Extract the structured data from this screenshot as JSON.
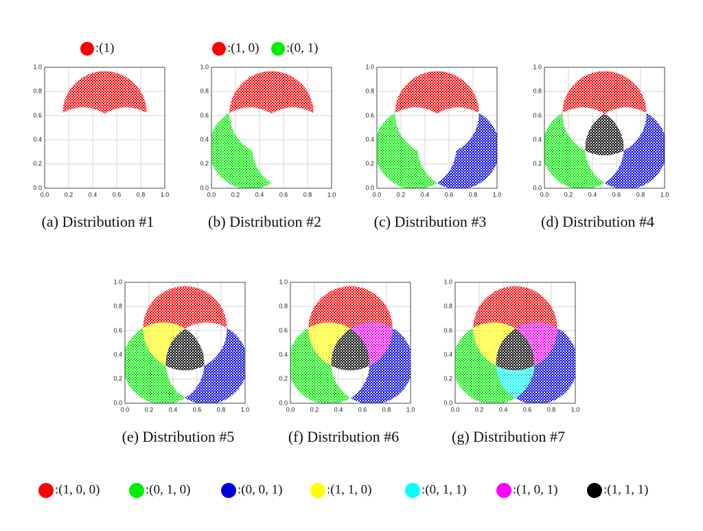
{
  "panels": [
    {
      "caption": "(a) Distribution #1",
      "regions": [
        0
      ],
      "legend": [
        {
          "label": ":(1)",
          "color": "#ff0000"
        }
      ]
    },
    {
      "caption": "(b) Distribution #2",
      "regions": [
        0,
        1
      ],
      "legend": [
        {
          "label": ":(1, 0)",
          "color": "#ff0000"
        },
        {
          "label": ":(0, 1)",
          "color": "#00ee00"
        }
      ]
    },
    {
      "caption": "(c) Distribution #3",
      "regions": [
        0,
        1,
        2
      ]
    },
    {
      "caption": "(d) Distribution #4",
      "regions": [
        0,
        1,
        2,
        6
      ]
    },
    {
      "caption": "(e) Distribution #5",
      "regions": [
        0,
        1,
        2,
        6,
        3
      ]
    },
    {
      "caption": "(f) Distribution #6",
      "regions": [
        0,
        1,
        2,
        6,
        3,
        5
      ]
    },
    {
      "caption": "(g) Distribution #7",
      "regions": [
        0,
        1,
        2,
        6,
        3,
        5,
        4
      ]
    }
  ],
  "xticks": [
    {
      "value": 0,
      "label": "0.0"
    },
    {
      "value": 0.2,
      "label": "0.2"
    },
    {
      "value": 0.4,
      "label": "0.4"
    },
    {
      "value": 0.6,
      "label": "0.6"
    },
    {
      "value": 0.8,
      "label": "0.8"
    },
    {
      "value": 1,
      "label": "1.0"
    }
  ],
  "yticks": [
    {
      "value": 0,
      "label": "0.0"
    },
    {
      "value": 0.2,
      "label": "0.2"
    },
    {
      "value": 0.4,
      "label": "0.4"
    },
    {
      "value": 0.6,
      "label": "0.6"
    },
    {
      "value": 0.8,
      "label": "0.8"
    },
    {
      "value": 1,
      "label": "1.0"
    }
  ],
  "legend": [
    {
      "label": ":(1, 0, 0)",
      "color": "#ff0000"
    },
    {
      "label": ":(0, 1, 0)",
      "color": "#00ee00"
    },
    {
      "label": ":(0, 0, 1)",
      "color": "#0000e0"
    },
    {
      "label": ":(1, 1, 0)",
      "color": "#ffff00"
    },
    {
      "label": ":(0, 1, 1)",
      "color": "#00ffff"
    },
    {
      "label": ":(1, 0, 1)",
      "color": "#ff00ff"
    },
    {
      "label": ":(1, 1, 1)",
      "color": "#000000"
    }
  ]
}
